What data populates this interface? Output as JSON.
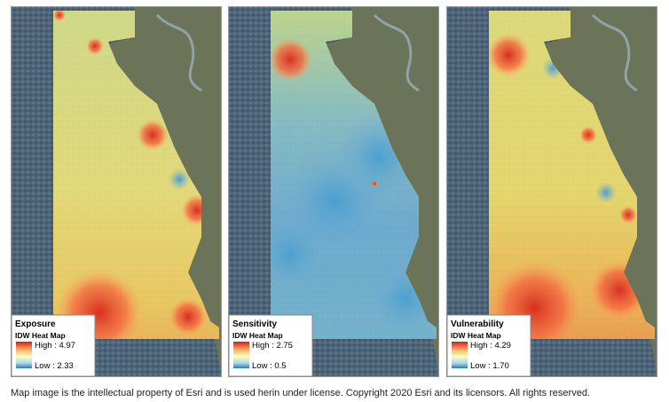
{
  "panels": [
    {
      "title": "Exposure",
      "subtitle": "IDW Heat Map",
      "high": "High : 4.97",
      "low": "Low : 2.33"
    },
    {
      "title": "Sensitivity",
      "subtitle": "IDW Heat Map",
      "high": "High : 2.75",
      "low": "Low : 0.5"
    },
    {
      "title": "Vulnerability",
      "subtitle": "IDW Heat Map",
      "high": "High : 4.29",
      "low": "Low : 1.70"
    }
  ],
  "caption": "Map image is the intellectual property of Esri and is used herin under license. Copyright 2020 Esri and its licensors. All rights reserved."
}
